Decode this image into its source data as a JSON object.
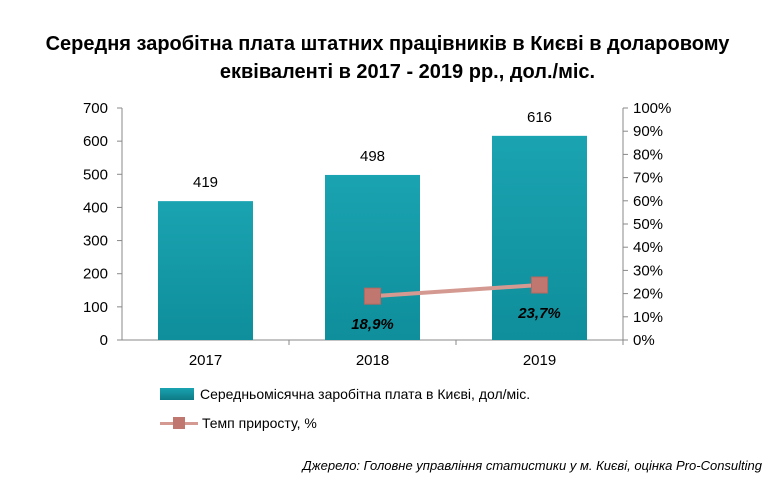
{
  "title_line1": "Середня заробітна плата штатних працівників в Києві в доларовому",
  "title_line2": "еквіваленті в 2017 - 2019 рр., дол./міс.",
  "source": "Джерело: Головне управління статистики у м. Києві, оцінка Pro-Consulting",
  "colors": {
    "bar": "#0f8e9b",
    "bar_light": "#1aa3b1",
    "line": "#d49a91",
    "marker": "#c0776f"
  },
  "chart_data": {
    "type": "bar",
    "categories": [
      "2017",
      "2018",
      "2019"
    ],
    "series": [
      {
        "name": "Середньомісячна  заробітна  плата в Києві, дол/міс.",
        "type": "bar",
        "axis": "left",
        "values": [
          419,
          498,
          616
        ],
        "labels": [
          "419",
          "498",
          "616"
        ]
      },
      {
        "name": "Темп приросту, %",
        "type": "line",
        "axis": "right",
        "values": [
          null,
          18.9,
          23.7
        ],
        "labels": [
          "",
          "18,9%",
          "23,7%"
        ]
      }
    ],
    "ylim": [
      0,
      700
    ],
    "yticks": [
      "0",
      "100",
      "200",
      "300",
      "400",
      "500",
      "600",
      "700"
    ],
    "y2lim": [
      0,
      100
    ],
    "y2ticks": [
      "0%",
      "10%",
      "20%",
      "30%",
      "40%",
      "50%",
      "60%",
      "70%",
      "80%",
      "90%",
      "100%"
    ],
    "legend": "bottom",
    "grid": false
  }
}
